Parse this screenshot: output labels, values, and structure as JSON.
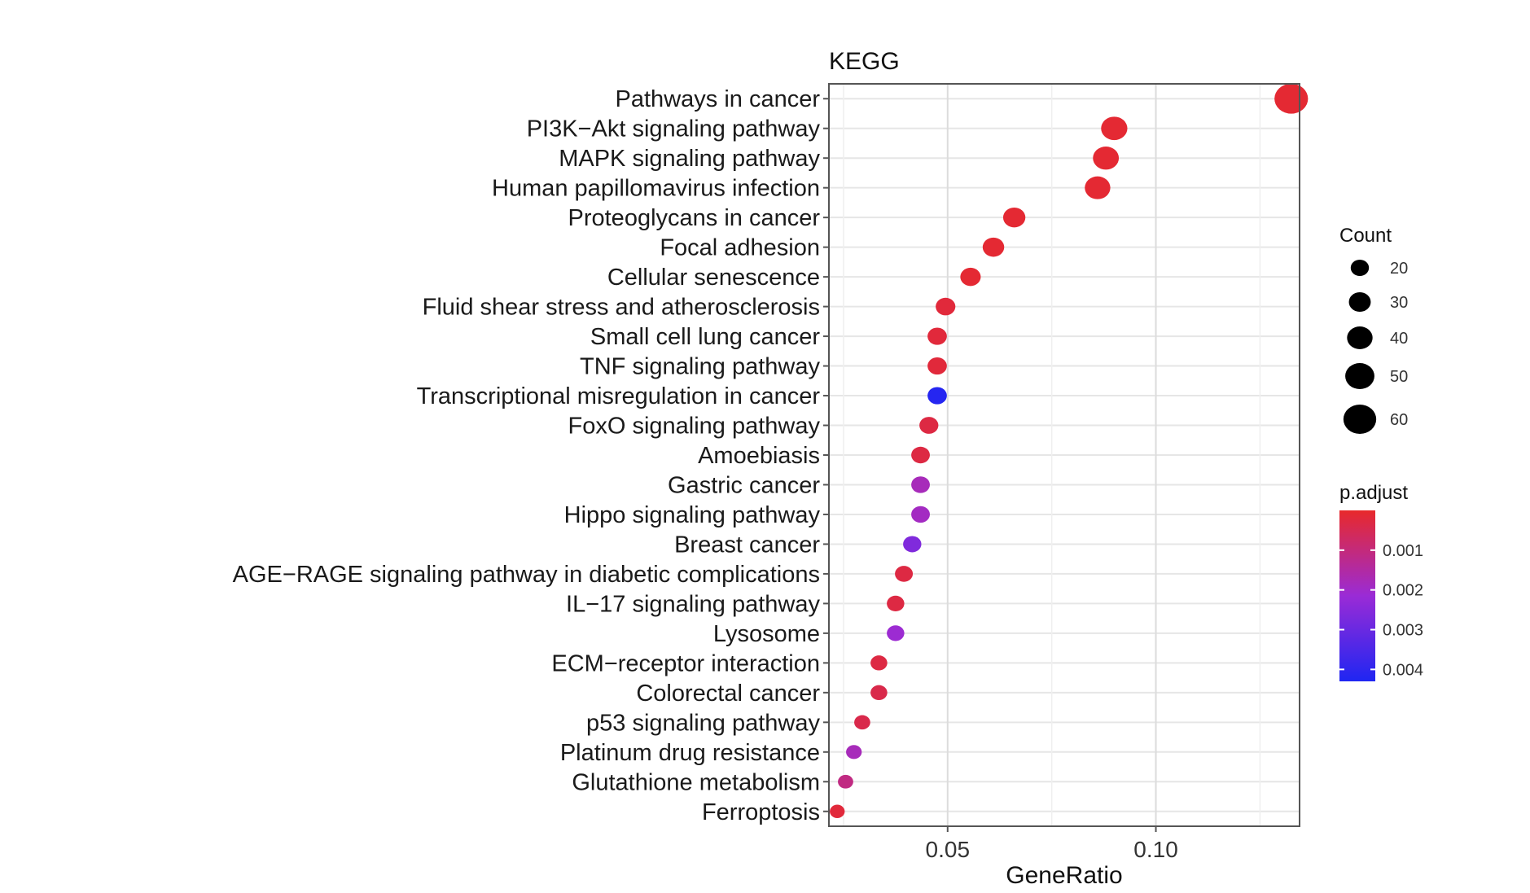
{
  "chart_data": {
    "type": "scatter",
    "title": "KEGG",
    "xlabel": "GeneRatio",
    "ylabel": "",
    "xlim": [
      0.0215,
      0.1345
    ],
    "xticks": [
      0.05,
      0.1
    ],
    "xtick_labels": [
      "0.05",
      "0.10"
    ],
    "grid": true,
    "categories": [
      "Pathways in cancer",
      "PI3K−Akt signaling pathway",
      "MAPK signaling pathway",
      "Human papillomavirus infection",
      "Proteoglycans in cancer",
      "Focal adhesion",
      "Cellular senescence",
      "Fluid shear stress and atherosclerosis",
      "Small cell lung cancer",
      "TNF signaling pathway",
      "Transcriptional misregulation in cancer",
      "FoxO signaling pathway",
      "Amoebiasis",
      "Gastric cancer",
      "Hippo signaling pathway",
      "Breast cancer",
      "AGE−RAGE signaling pathway in diabetic complications",
      "IL−17 signaling pathway",
      "Lysosome",
      "ECM−receptor interaction",
      "Colorectal cancer",
      "p53 signaling pathway",
      "Platinum drug resistance",
      "Glutathione metabolism",
      "Ferroptosis"
    ],
    "gene_ratio": [
      0.1325,
      0.09,
      0.088,
      0.086,
      0.066,
      0.061,
      0.0555,
      0.0495,
      0.0475,
      0.0475,
      0.0475,
      0.0455,
      0.0435,
      0.0435,
      0.0435,
      0.0415,
      0.0395,
      0.0375,
      0.0375,
      0.0335,
      0.0335,
      0.0295,
      0.0275,
      0.0255,
      0.0235
    ],
    "count": [
      62,
      42,
      41,
      40,
      31,
      29,
      26,
      24,
      23,
      23,
      23,
      22,
      21,
      21,
      21,
      20,
      19,
      18,
      18,
      16,
      16,
      14,
      13,
      12,
      11
    ],
    "p_adjust": [
      0.0001,
      0.0001,
      0.0001,
      0.0001,
      0.0001,
      0.0001,
      0.0001,
      0.0002,
      0.0002,
      0.0002,
      0.0042,
      0.0003,
      0.0003,
      0.0018,
      0.0019,
      0.0026,
      0.0003,
      0.0003,
      0.0021,
      0.0003,
      0.0004,
      0.0004,
      0.0018,
      0.0011,
      0.0002
    ],
    "legend_size": {
      "title": "Count",
      "values": [
        20,
        30,
        40,
        50,
        60
      ],
      "labels": [
        "20",
        "30",
        "40",
        "50",
        "60"
      ]
    },
    "legend_color": {
      "title": "p.adjust",
      "ticks": [
        0.001,
        0.002,
        0.003,
        0.004
      ],
      "labels": [
        "0.001",
        "0.002",
        "0.003",
        "0.004"
      ],
      "range": [
        0.0,
        0.0043
      ],
      "low_color": "#e8292b",
      "mid_color": "#9a2bd6",
      "high_color": "#1f26f2"
    },
    "legend_placement": "right",
    "panel_background": "#ffffff",
    "grid_color": "#e6e6e6",
    "border_color": "#555555"
  }
}
